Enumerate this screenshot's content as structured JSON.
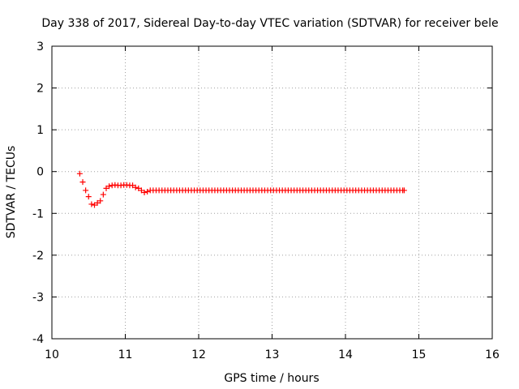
{
  "chart_data": {
    "type": "scatter",
    "title": "Day 338 of 2017, Sidereal Day-to-day VTEC variation (SDTVAR) for receiver bele",
    "xlabel": "GPS time / hours",
    "ylabel": "SDTVAR / TECUs",
    "xlim": [
      10,
      16
    ],
    "ylim": [
      -4,
      3
    ],
    "x_ticks": [
      "10",
      "11",
      "12",
      "13",
      "14",
      "15",
      "16"
    ],
    "y_ticks": [
      "-4",
      "-3",
      "-2",
      "-1",
      "0",
      "1",
      "2",
      "3"
    ],
    "grid": true,
    "marker": "+",
    "color": "#ff0000",
    "series": [
      {
        "x": [
          10.38,
          10.42,
          10.46,
          10.5,
          10.54,
          10.58,
          10.62,
          10.66,
          10.7,
          10.74,
          10.78,
          10.82,
          10.86,
          10.9,
          10.94,
          10.98,
          11.02,
          11.06,
          11.1,
          11.14,
          11.18,
          11.22,
          11.26,
          11.3,
          11.34,
          11.38,
          11.42,
          11.46,
          11.5,
          11.54,
          11.58,
          11.62,
          11.66,
          11.7,
          11.74,
          11.78,
          11.82,
          11.86,
          11.9,
          11.94,
          11.98,
          12.02,
          12.06,
          12.1,
          12.14,
          12.18,
          12.22,
          12.26,
          12.3,
          12.34,
          12.38,
          12.42,
          12.46,
          12.5,
          12.54,
          12.58,
          12.62,
          12.66,
          12.7,
          12.74,
          12.78,
          12.82,
          12.86,
          12.9,
          12.94,
          12.98,
          13.02,
          13.06,
          13.1,
          13.14,
          13.18,
          13.22,
          13.26,
          13.3,
          13.34,
          13.38,
          13.42,
          13.46,
          13.5,
          13.54,
          13.58,
          13.62,
          13.66,
          13.7,
          13.74,
          13.78,
          13.82,
          13.86,
          13.9,
          13.94,
          13.98,
          14.02,
          14.06,
          14.1,
          14.14,
          14.18,
          14.22,
          14.26,
          14.3,
          14.34,
          14.38,
          14.42,
          14.46,
          14.5,
          14.54,
          14.58,
          14.62,
          14.66,
          14.7,
          14.74,
          14.78,
          14.8
        ],
        "y": [
          -0.05,
          -0.25,
          -0.45,
          -0.6,
          -0.78,
          -0.8,
          -0.75,
          -0.7,
          -0.55,
          -0.4,
          -0.35,
          -0.33,
          -0.32,
          -0.33,
          -0.33,
          -0.32,
          -0.32,
          -0.33,
          -0.33,
          -0.38,
          -0.4,
          -0.45,
          -0.5,
          -0.48,
          -0.45,
          -0.45,
          -0.45,
          -0.45,
          -0.45,
          -0.45,
          -0.45,
          -0.45,
          -0.45,
          -0.45,
          -0.45,
          -0.45,
          -0.45,
          -0.45,
          -0.45,
          -0.45,
          -0.45,
          -0.45,
          -0.45,
          -0.45,
          -0.45,
          -0.45,
          -0.45,
          -0.45,
          -0.45,
          -0.45,
          -0.45,
          -0.45,
          -0.45,
          -0.45,
          -0.45,
          -0.45,
          -0.45,
          -0.45,
          -0.45,
          -0.45,
          -0.45,
          -0.45,
          -0.45,
          -0.45,
          -0.45,
          -0.45,
          -0.45,
          -0.45,
          -0.45,
          -0.45,
          -0.45,
          -0.45,
          -0.45,
          -0.45,
          -0.45,
          -0.45,
          -0.45,
          -0.45,
          -0.45,
          -0.45,
          -0.45,
          -0.45,
          -0.45,
          -0.45,
          -0.45,
          -0.45,
          -0.45,
          -0.45,
          -0.45,
          -0.45,
          -0.45,
          -0.45,
          -0.45,
          -0.45,
          -0.45,
          -0.45,
          -0.45,
          -0.45,
          -0.45,
          -0.45,
          -0.45,
          -0.45,
          -0.45,
          -0.45,
          -0.45,
          -0.45,
          -0.45,
          -0.45,
          -0.45,
          -0.45,
          -0.45,
          -0.45
        ]
      }
    ]
  }
}
